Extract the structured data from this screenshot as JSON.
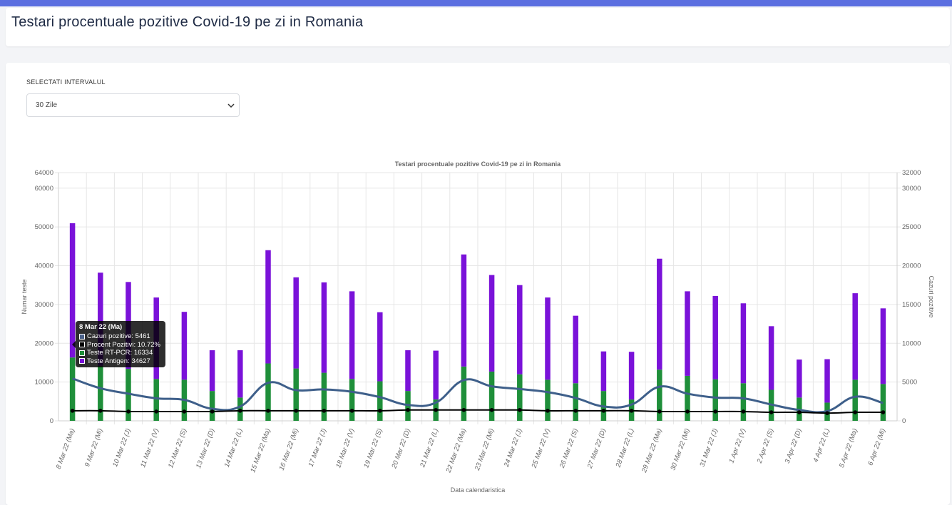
{
  "page": {
    "title": "Testari procentuale pozitive Covid-19 pe zi in Romania"
  },
  "filter": {
    "label": "SELECTATI INTERVALUL",
    "selected": "30 Zile"
  },
  "tooltip": {
    "title": "8 Mar 22 (Ma)",
    "rows": [
      {
        "text": "Cazuri pozitive: 5461",
        "color": "#4a6189"
      },
      {
        "text": "Procent Pozitivi: 10.72%",
        "color": "#000000"
      },
      {
        "text": "Teste RT-PCR: 16334",
        "color": "#1f8f3a"
      },
      {
        "text": "Teste Antigen: 34627",
        "color": "#7a12d9"
      }
    ]
  },
  "colors": {
    "pcr": "#1f8f3a",
    "antigen": "#7a12d9",
    "cases": "#3e5f8a",
    "percent": "#000000",
    "grid": "#e6e6e6",
    "axis_text": "#666666"
  },
  "chart_data": {
    "type": "bar",
    "stacked": true,
    "title": "Testari procentuale pozitive Covid-19 pe zi in Romania",
    "xlabel": "Data calendaristica",
    "ylabel": "Numar teste",
    "y2label": "Cazuri pozitive",
    "ylim": [
      0,
      64000
    ],
    "y2lim": [
      0,
      32000
    ],
    "yticks": [
      0,
      10000,
      20000,
      30000,
      40000,
      50000,
      60000,
      64000
    ],
    "y2ticks": [
      0,
      5000,
      10000,
      15000,
      20000,
      25000,
      30000,
      32000
    ],
    "grid": true,
    "categories": [
      "8 Mar 22 (Ma)",
      "9 Mar 22 (Mi)",
      "10 Mar 22 (J)",
      "11 Mar 22 (V)",
      "12 Mar 22 (S)",
      "13 Mar 22 (D)",
      "14 Mar 22 (L)",
      "15 Mar 22 (Ma)",
      "16 Mar 22 (Mi)",
      "17 Mar 22 (J)",
      "18 Mar 22 (V)",
      "19 Mar 22 (S)",
      "20 Mar 22 (D)",
      "21 Mar 22 (L)",
      "22 Mar 22 (Ma)",
      "23 Mar 22 (Mi)",
      "24 Mar 22 (J)",
      "25 Mar 22 (V)",
      "26 Mar 22 (S)",
      "27 Mar 22 (D)",
      "28 Mar 22 (L)",
      "29 Mar 22 (Ma)",
      "30 Mar 22 (Mi)",
      "31 Mar 22 (J)",
      "1 Apr 22 (V)",
      "2 Apr 22 (S)",
      "3 Apr 22 (D)",
      "4 Apr 22 (L)",
      "5 Apr 22 (Ma)",
      "6 Apr 22 (Mi)"
    ],
    "series": [
      {
        "name": "Teste RT-PCR",
        "type": "bar",
        "axis": "left",
        "values": [
          16334,
          14200,
          13400,
          10800,
          10600,
          7700,
          6000,
          14800,
          13500,
          12400,
          10800,
          10200,
          7700,
          5500,
          14000,
          12700,
          12000,
          10600,
          9700,
          7700,
          5500,
          13200,
          11600,
          10700,
          9700,
          8000,
          6000,
          4700,
          10600,
          9500
        ]
      },
      {
        "name": "Teste Antigen",
        "type": "bar",
        "axis": "left",
        "values": [
          34627,
          24000,
          22400,
          21000,
          17500,
          10500,
          12200,
          29200,
          23500,
          23300,
          22600,
          17800,
          10500,
          12600,
          28900,
          24900,
          23000,
          21200,
          17400,
          10200,
          12300,
          28600,
          21800,
          21500,
          20600,
          16400,
          9800,
          11200,
          22300,
          19500
        ]
      },
      {
        "name": "Cazuri pozitive",
        "type": "line",
        "axis": "right",
        "values": [
          5461,
          4200,
          3500,
          2900,
          2700,
          1550,
          1850,
          4900,
          3950,
          4050,
          3750,
          3050,
          2050,
          2350,
          5250,
          4450,
          4100,
          3700,
          2950,
          1850,
          2100,
          4400,
          3500,
          3000,
          2900,
          2100,
          1400,
          1250,
          3100,
          2300
        ]
      },
      {
        "name": "Procent Pozitivi",
        "type": "line",
        "axis": "right",
        "values": [
          1300,
          1300,
          1200,
          1200,
          1200,
          1200,
          1300,
          1300,
          1300,
          1300,
          1300,
          1300,
          1400,
          1400,
          1400,
          1400,
          1400,
          1300,
          1300,
          1300,
          1300,
          1200,
          1200,
          1200,
          1200,
          1100,
          1100,
          1000,
          1100,
          1100
        ]
      }
    ]
  }
}
